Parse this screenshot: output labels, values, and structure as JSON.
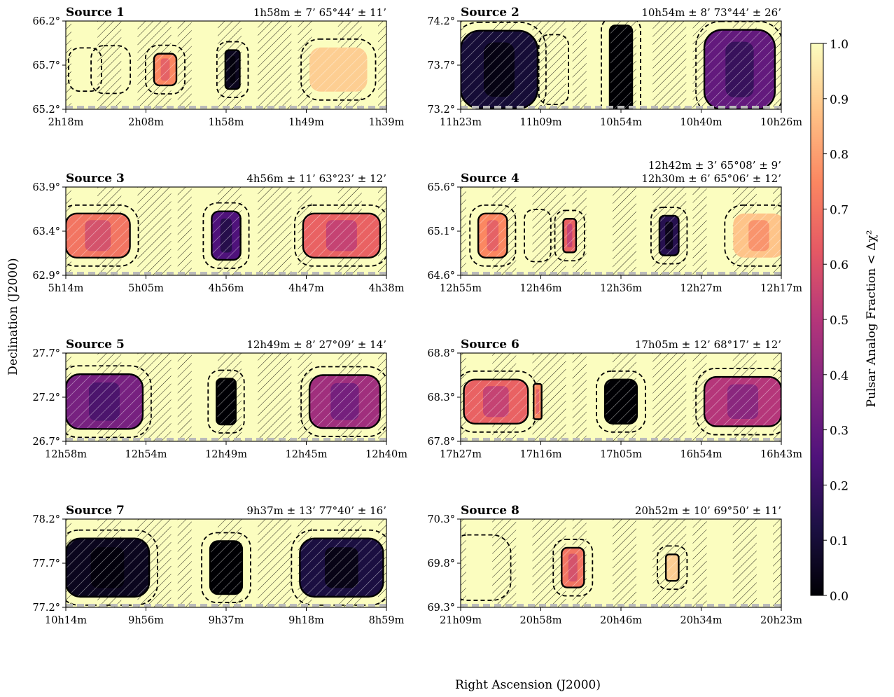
{
  "figure": {
    "xlabel": "Right Ascension (J2000)",
    "ylabel": "Declination (J2000)"
  },
  "colorbar": {
    "label": "Pulsar Analog Fraction < Δχ²",
    "ticks": [
      "0.0",
      "0.1",
      "0.2",
      "0.3",
      "0.4",
      "0.5",
      "0.6",
      "0.7",
      "0.8",
      "0.9",
      "1.0"
    ],
    "colormap": "magma",
    "colors": [
      "#000004",
      "#1c1044",
      "#4f127b",
      "#812581",
      "#b5367a",
      "#e55964",
      "#fb8761",
      "#fec287",
      "#fbfdbf"
    ]
  },
  "chart_data": [
    {
      "type": "heatmap",
      "title": "Source 1",
      "coords": [
        "1h58m ± 7’   65°44’ ± 11’"
      ],
      "xticks": [
        "2h18m",
        "2h08m",
        "1h58m",
        "1h49m",
        "1h39m"
      ],
      "yticks": [
        "66.2°",
        "65.7°",
        "65.2°"
      ],
      "ylim": [
        65.2,
        66.2
      ],
      "blobs": [
        {
          "x": 0.31,
          "w": 0.07,
          "h": 0.36,
          "v": 0.75,
          "solid": true,
          "dash": true
        },
        {
          "x": 0.52,
          "w": 0.045,
          "h": 0.44,
          "v": 0.05,
          "solid": true,
          "dash": true
        },
        {
          "x": 0.85,
          "w": 0.18,
          "h": 0.5,
          "v": 0.9,
          "solid": false,
          "dash": true
        },
        {
          "x": 0.06,
          "w": 0.05,
          "h": 0.3,
          "v": 1.0,
          "solid": false,
          "dash": true
        },
        {
          "x": 0.14,
          "w": 0.07,
          "h": 0.35,
          "v": 1.0,
          "solid": false,
          "dash": true
        }
      ]
    },
    {
      "type": "heatmap",
      "title": "Source 2",
      "coords": [
        "10h54m ± 8’   73°44’ ± 26’"
      ],
      "xticks": [
        "11h23m",
        "11h09m",
        "10h54m",
        "10h40m",
        "10h26m"
      ],
      "yticks": [
        "74.2°",
        "73.7°",
        "73.2°"
      ],
      "ylim": [
        73.2,
        74.2
      ],
      "blobs": [
        {
          "x": 0.12,
          "w": 0.24,
          "h": 0.88,
          "v": 0.1,
          "solid": true,
          "dash": true
        },
        {
          "x": 0.5,
          "w": 0.07,
          "h": 1.0,
          "v": 0.0,
          "solid": true,
          "dash": true
        },
        {
          "x": 0.87,
          "w": 0.22,
          "h": 0.9,
          "v": 0.3,
          "solid": true,
          "dash": true
        },
        {
          "x": 0.29,
          "w": 0.04,
          "h": 0.6,
          "v": 1.0,
          "solid": false,
          "dash": true
        }
      ]
    },
    {
      "type": "heatmap",
      "title": "Source 3",
      "coords": [
        "4h56m ± 11’   63°23’ ± 12’"
      ],
      "xticks": [
        "5h14m",
        "5h05m",
        "4h56m",
        "4h47m",
        "4h38m"
      ],
      "yticks": [
        "63.9°",
        "63.4°",
        "62.9°"
      ],
      "ylim": [
        62.9,
        63.9
      ],
      "blobs": [
        {
          "x": 0.1,
          "w": 0.2,
          "h": 0.5,
          "v": 0.7,
          "solid": true,
          "dash": true
        },
        {
          "x": 0.5,
          "w": 0.09,
          "h": 0.55,
          "v": 0.25,
          "solid": true,
          "dash": true
        },
        {
          "x": 0.86,
          "w": 0.24,
          "h": 0.5,
          "v": 0.65,
          "solid": true,
          "dash": true
        }
      ]
    },
    {
      "type": "heatmap",
      "title": "Source 4",
      "coords": [
        "12h42m ± 3’   65°08’ ±   9’",
        "12h30m ± 6’   65°06’ ± 12’"
      ],
      "xticks": [
        "12h55m",
        "12h46m",
        "12h36m",
        "12h27m",
        "12h17m"
      ],
      "yticks": [
        "65.6°",
        "65.1°",
        "64.6°"
      ],
      "ylim": [
        64.6,
        65.6
      ],
      "blobs": [
        {
          "x": 0.1,
          "w": 0.09,
          "h": 0.5,
          "v": 0.75,
          "solid": true,
          "dash": true
        },
        {
          "x": 0.34,
          "w": 0.04,
          "h": 0.38,
          "v": 0.65,
          "solid": true,
          "dash": true
        },
        {
          "x": 0.65,
          "w": 0.06,
          "h": 0.45,
          "v": 0.15,
          "solid": true,
          "dash": true
        },
        {
          "x": 0.24,
          "w": 0.03,
          "h": 0.4,
          "v": 1.0,
          "solid": false,
          "dash": true
        },
        {
          "x": 0.93,
          "w": 0.16,
          "h": 0.5,
          "v": 0.88,
          "solid": false,
          "dash": true
        }
      ]
    },
    {
      "type": "heatmap",
      "title": "Source 5",
      "coords": [
        "12h49m ± 8’   27°09’ ± 14’"
      ],
      "xticks": [
        "12h58m",
        "12h54m",
        "12h49m",
        "12h45m",
        "12h40m"
      ],
      "yticks": [
        "27.7°",
        "27.2°",
        "26.7°"
      ],
      "ylim": [
        26.7,
        27.7
      ],
      "blobs": [
        {
          "x": 0.12,
          "w": 0.24,
          "h": 0.62,
          "v": 0.35,
          "solid": true,
          "dash": true
        },
        {
          "x": 0.5,
          "w": 0.06,
          "h": 0.52,
          "v": 0.0,
          "solid": true,
          "dash": true
        },
        {
          "x": 0.87,
          "w": 0.22,
          "h": 0.6,
          "v": 0.45,
          "solid": true,
          "dash": true
        }
      ]
    },
    {
      "type": "heatmap",
      "title": "Source 6",
      "coords": [
        "17h05m ± 12’   68°17’ ± 12’"
      ],
      "xticks": [
        "17h27m",
        "17h16m",
        "17h05m",
        "16h54m",
        "16h43m"
      ],
      "yticks": [
        "68.8°",
        "68.3°",
        "67.8°"
      ],
      "ylim": [
        67.8,
        68.8
      ],
      "blobs": [
        {
          "x": 0.11,
          "w": 0.2,
          "h": 0.5,
          "v": 0.65,
          "solid": true,
          "dash": true
        },
        {
          "x": 0.24,
          "w": 0.025,
          "h": 0.4,
          "v": 0.75,
          "solid": true,
          "dash": false
        },
        {
          "x": 0.5,
          "w": 0.1,
          "h": 0.5,
          "v": 0.0,
          "solid": true,
          "dash": true
        },
        {
          "x": 0.88,
          "w": 0.24,
          "h": 0.56,
          "v": 0.5,
          "solid": true,
          "dash": true
        }
      ]
    },
    {
      "type": "heatmap",
      "title": "Source 7",
      "coords": [
        "9h37m ± 13’   77°40’ ± 16’"
      ],
      "xticks": [
        "10h14m",
        "9h56m",
        "9h37m",
        "9h18m",
        "8h59m"
      ],
      "yticks": [
        "78.2°",
        "77.7°",
        "77.2°"
      ],
      "ylim": [
        77.2,
        78.2
      ],
      "blobs": [
        {
          "x": 0.13,
          "w": 0.26,
          "h": 0.66,
          "v": 0.05,
          "solid": true,
          "dash": true
        },
        {
          "x": 0.5,
          "w": 0.1,
          "h": 0.6,
          "v": 0.0,
          "solid": true,
          "dash": true
        },
        {
          "x": 0.86,
          "w": 0.26,
          "h": 0.66,
          "v": 0.12,
          "solid": true,
          "dash": true
        }
      ]
    },
    {
      "type": "heatmap",
      "title": "Source 8",
      "coords": [
        "20h52m ± 10’   69°50’ ± 11’"
      ],
      "xticks": [
        "21h09m",
        "20h58m",
        "20h46m",
        "20h34m",
        "20h23m"
      ],
      "yticks": [
        "70.3°",
        "69.8°",
        "69.3°"
      ],
      "ylim": [
        69.3,
        70.3
      ],
      "blobs": [
        {
          "x": 0.35,
          "w": 0.07,
          "h": 0.45,
          "v": 0.7,
          "solid": true,
          "dash": true
        },
        {
          "x": 0.66,
          "w": 0.04,
          "h": 0.3,
          "v": 0.9,
          "solid": true,
          "dash": true
        },
        {
          "x": 0.06,
          "w": 0.14,
          "h": 0.55,
          "v": 1.0,
          "solid": false,
          "dash": true
        }
      ]
    }
  ]
}
